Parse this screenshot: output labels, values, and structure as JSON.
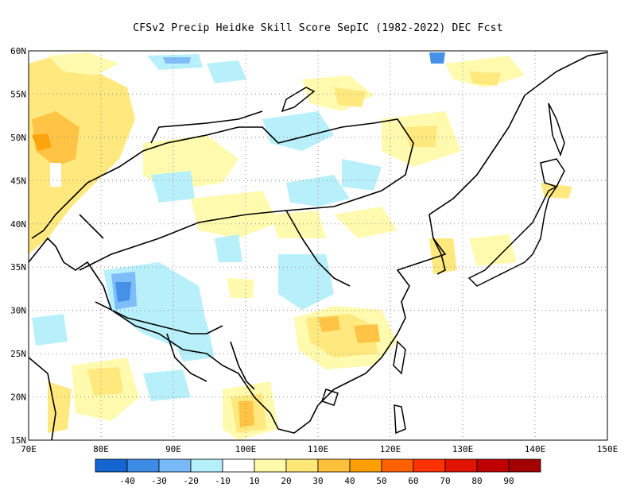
{
  "title": "CFSv2 Precip Heidke Skill Score SepIC (1982-2022) DEC Fcst",
  "axes": {
    "lat_labels": [
      "60N",
      "55N",
      "50N",
      "45N",
      "40N",
      "35N",
      "30N",
      "25N",
      "20N",
      "15N"
    ],
    "lon_labels": [
      "70E",
      "80E",
      "90E",
      "100E",
      "110E",
      "120E",
      "130E",
      "140E",
      "150E"
    ]
  },
  "colorbar": {
    "colors": [
      "#1464d2",
      "#3c8ce6",
      "#78b9fa",
      "#b4f0fa",
      "#ffffff",
      "#fffaaa",
      "#ffe878",
      "#ffc03c",
      "#ffa000",
      "#ff6000",
      "#ff3200",
      "#e11400",
      "#c00000",
      "#a50000"
    ],
    "tick_labels": [
      "-40",
      "-30",
      "-20",
      "-10",
      "10",
      "20",
      "30",
      "40",
      "50",
      "60",
      "70",
      "80",
      "90"
    ]
  },
  "map_region": {
    "lon_range": [
      70,
      150
    ],
    "lat_range": [
      15,
      60
    ]
  }
}
